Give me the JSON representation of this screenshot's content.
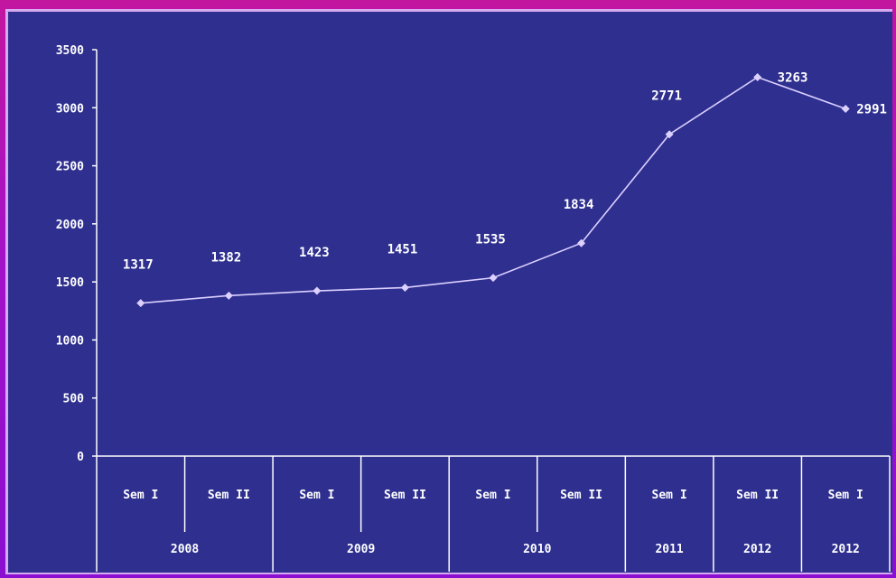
{
  "chart_data": {
    "type": "line",
    "x_groups": [
      {
        "year": "2008",
        "periods": [
          "Sem I",
          "Sem II"
        ]
      },
      {
        "year": "2009",
        "periods": [
          "Sem I",
          "Sem II"
        ]
      },
      {
        "year": "2010",
        "periods": [
          "Sem I",
          "Sem II"
        ]
      },
      {
        "year": "2011",
        "periods": [
          "Sem I"
        ]
      },
      {
        "year": "2012",
        "periods": [
          "Sem II"
        ]
      },
      {
        "year": "2012",
        "periods": [
          "Sem I"
        ]
      }
    ],
    "categories": [
      "Sem I",
      "Sem II",
      "Sem I",
      "Sem II",
      "Sem I",
      "Sem II",
      "Sem I",
      "Sem II",
      "Sem I"
    ],
    "series": [
      {
        "values": [
          1317,
          1382,
          1423,
          1451,
          1535,
          1834,
          2771,
          3263,
          2991
        ],
        "data_labels": [
          "1317",
          "1382",
          "1423",
          "1451",
          "1535",
          "1834",
          "2771",
          "3263",
          "2991"
        ]
      }
    ],
    "y_ticks": [
      "3500",
      "3000",
      "2500",
      "2000",
      "1500",
      "1000",
      "500",
      "0"
    ],
    "ylim": [
      0,
      3500
    ],
    "grid": false,
    "colors": {
      "background": "#2e2f8f",
      "line": "#dcd0ff",
      "text": "#ffffff"
    }
  }
}
